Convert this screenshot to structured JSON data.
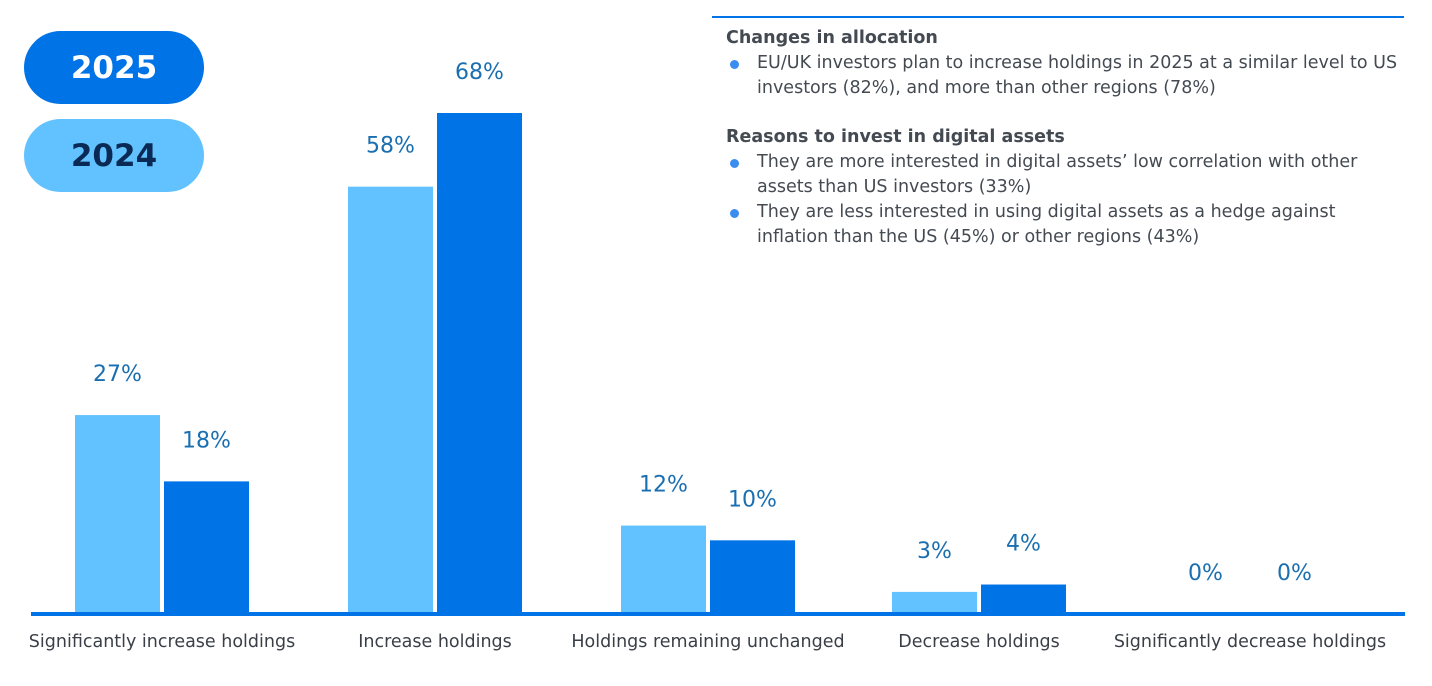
{
  "legend": [
    {
      "label": "2025",
      "color": "#0073e6"
    },
    {
      "label": "2024",
      "color": "#62c2ff"
    }
  ],
  "notes": {
    "section1": {
      "heading": "Changes in allocation",
      "bullets": [
        "EU/UK investors plan to increase holdings in 2025 at a similar level to US investors (82%), and more than other regions (78%)"
      ]
    },
    "section2": {
      "heading": "Reasons to invest in digital assets",
      "bullets": [
        "They are more interested in digital assets’ low correlation with other assets than US investors (33%)",
        "They are less interested in using digital assets as a hedge against inflation than the US (45%) or other regions (43%)"
      ]
    }
  },
  "chart_data": {
    "type": "bar",
    "categories": [
      "Significantly increase holdings",
      "Increase holdings",
      "Holdings remaining unchanged",
      "Decrease holdings",
      "Significantly decrease holdings"
    ],
    "series": [
      {
        "name": "2024",
        "color": "#62c2ff",
        "values": [
          27,
          58,
          12,
          3,
          0
        ],
        "labels": [
          "27%",
          "58%",
          "12%",
          "3%",
          "0%"
        ]
      },
      {
        "name": "2025",
        "color": "#0073e6",
        "values": [
          18,
          68,
          10,
          4,
          0
        ],
        "labels": [
          "18%",
          "68%",
          "10%",
          "4%",
          "0%"
        ]
      }
    ],
    "ylim": [
      0,
      70
    ],
    "label_color": "#1a6fb0",
    "axis_color": "#0073e6"
  }
}
